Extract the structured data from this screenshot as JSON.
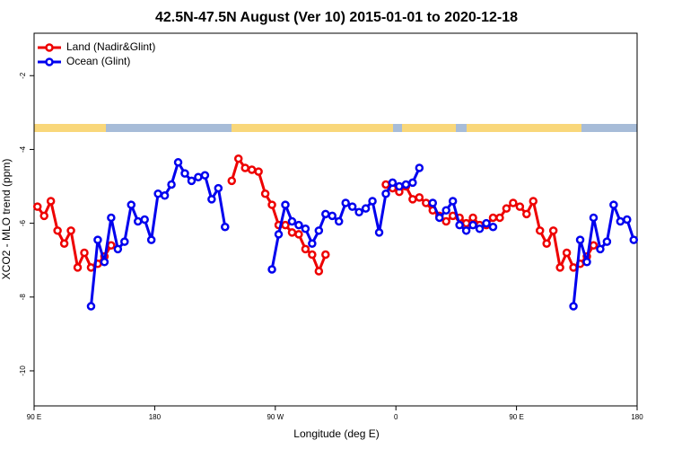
{
  "chart_data": {
    "type": "line",
    "title": "42.5N-47.5N August (Ver 10)   2015-01-01 to 2020-12-18",
    "xlabel": "Longitude (deg E)",
    "ylabel": "XCO2 - MLO trend (ppm)",
    "xlim": [
      90,
      540
    ],
    "ylim": [
      -10.95,
      -0.85
    ],
    "xticks": [
      {
        "value": 90,
        "label": "90 E"
      },
      180,
      {
        "value": 270,
        "label": "90 W"
      },
      {
        "value": 360,
        "label": "0"
      },
      {
        "value": 450,
        "label": "90 E"
      },
      {
        "value": 540,
        "label": "180"
      }
    ],
    "yticks": [
      -2,
      -4,
      -6,
      -8,
      -10
    ],
    "legend": "upper left",
    "x": [
      92.5,
      97.5,
      102.5,
      107.5,
      112.5,
      117.5,
      122.5,
      127.5,
      132.5,
      137.5,
      142.5,
      147.5,
      152.5,
      157.5,
      162.5,
      167.5,
      172.5,
      177.5,
      182.5,
      187.5,
      192.5,
      197.5,
      202.5,
      207.5,
      212.5,
      217.5,
      222.5,
      227.5,
      232.5,
      237.5,
      242.5,
      247.5,
      252.5,
      257.5,
      262.5,
      267.5,
      272.5,
      277.5,
      282.5,
      287.5,
      292.5,
      297.5,
      302.5,
      307.5,
      312.5,
      317.5,
      322.5,
      327.5,
      332.5,
      337.5,
      342.5,
      347.5,
      352.5,
      357.5,
      362.5,
      367.5,
      372.5,
      377.5,
      382.5,
      387.5,
      392.5,
      397.5,
      402.5,
      407.5,
      412.5,
      417.5,
      422.5,
      427.5,
      432.5,
      437.5,
      442.5,
      447.5,
      452.5,
      457.5,
      462.5,
      467.5,
      472.5,
      477.5,
      482.5,
      487.5,
      492.5,
      497.5,
      502.5,
      507.5,
      512.5,
      517.5,
      522.5,
      527.5,
      532.5,
      537.5
    ],
    "series": [
      {
        "name": "Land (Nadir&Glint)",
        "color": "#ee0000",
        "values": [
          -5.55,
          -5.8,
          -5.4,
          -6.2,
          -6.55,
          -6.2,
          -7.2,
          -6.8,
          -7.2,
          -7.1,
          -6.9,
          -6.6,
          null,
          null,
          null,
          null,
          null,
          null,
          null,
          null,
          null,
          null,
          null,
          null,
          null,
          null,
          null,
          null,
          null,
          -4.85,
          -4.25,
          -4.5,
          -4.55,
          -4.6,
          -5.2,
          -5.5,
          -6.05,
          -6.05,
          -6.25,
          -6.3,
          -6.7,
          -6.85,
          -7.3,
          -6.85,
          null,
          null,
          null,
          null,
          null,
          null,
          null,
          null,
          -4.95,
          -5.05,
          -5.15,
          -5.0,
          -5.35,
          -5.3,
          -5.45,
          -5.65,
          -5.8,
          -5.95,
          -5.8,
          -5.85,
          -6.0,
          -5.85,
          -6.05,
          -6.05,
          -5.85,
          -5.85,
          -5.6,
          -5.45,
          -5.55,
          -5.75,
          -5.4,
          -6.2,
          -6.55,
          -6.2,
          -7.2,
          -6.8,
          -7.2,
          -7.1,
          -6.9,
          -6.6,
          null,
          null,
          null,
          null,
          null,
          null
        ]
      },
      {
        "name": "Ocean (Glint)",
        "color": "#0000ee",
        "values": [
          null,
          null,
          null,
          null,
          null,
          null,
          null,
          null,
          -8.25,
          -6.45,
          -7.05,
          -5.85,
          -6.7,
          -6.5,
          -5.5,
          -5.95,
          -5.9,
          -6.45,
          -5.2,
          -5.25,
          -4.95,
          -4.35,
          -4.65,
          -4.85,
          -4.75,
          -4.7,
          -5.35,
          -5.05,
          -6.1,
          null,
          null,
          null,
          null,
          null,
          null,
          -7.25,
          -6.3,
          -5.5,
          -5.95,
          -6.05,
          -6.15,
          -6.55,
          -6.2,
          -5.75,
          -5.8,
          -5.95,
          -5.45,
          -5.55,
          -5.7,
          -5.6,
          -5.4,
          -6.25,
          -5.2,
          -4.9,
          -5.0,
          -4.95,
          -4.9,
          -4.5,
          null,
          -5.45,
          -5.85,
          -5.65,
          -5.4,
          -6.05,
          -6.2,
          -6.05,
          -6.15,
          -6.0,
          -6.1,
          null,
          null,
          null,
          null,
          null,
          null,
          null,
          null,
          null,
          null,
          null,
          -8.25,
          -6.45,
          -7.05,
          -5.85,
          -6.7,
          -6.5,
          -5.5,
          -5.95,
          -5.9,
          -6.45
        ]
      }
    ]
  }
}
